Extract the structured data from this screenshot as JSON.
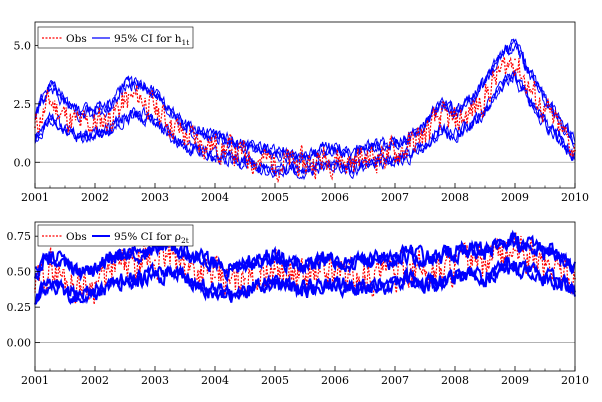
{
  "chart_data": [
    {
      "type": "line",
      "title": "",
      "xlabel": "",
      "ylabel": "",
      "xlim": [
        2001.0,
        2010.0
      ],
      "ylim": [
        -1.1,
        6.0
      ],
      "x_ticks": [
        "2001",
        "2002",
        "2003",
        "2004",
        "2005",
        "2006",
        "2007",
        "2008",
        "2009",
        "2010"
      ],
      "y_ticks": [
        "0.0",
        "2.5",
        "5.0"
      ],
      "y_tick_values": [
        0.0,
        2.5,
        5.0
      ],
      "reference_line": 0.0,
      "grid": false,
      "legend_position": "top-left",
      "x": [
        2001.0,
        2001.25,
        2001.5,
        2001.75,
        2002.0,
        2002.25,
        2002.5,
        2002.75,
        2003.0,
        2003.25,
        2003.5,
        2003.75,
        2004.0,
        2004.25,
        2004.5,
        2004.75,
        2005.0,
        2005.25,
        2005.5,
        2005.75,
        2006.0,
        2006.25,
        2006.5,
        2006.75,
        2007.0,
        2007.25,
        2007.5,
        2007.75,
        2008.0,
        2008.25,
        2008.5,
        2008.75,
        2009.0,
        2009.25,
        2009.5,
        2009.75,
        2010.0
      ],
      "series": [
        {
          "name": "Obs",
          "style": "dotted",
          "color": "#ff0000",
          "values": [
            1.5,
            2.6,
            2.0,
            1.6,
            1.7,
            1.9,
            2.6,
            2.8,
            2.3,
            1.7,
            1.1,
            0.9,
            0.7,
            0.5,
            0.3,
            0.1,
            0.0,
            0.0,
            -0.1,
            0.1,
            0.2,
            0.0,
            0.2,
            0.3,
            0.4,
            0.7,
            1.2,
            1.9,
            1.7,
            2.1,
            2.8,
            3.9,
            4.4,
            3.1,
            2.2,
            1.4,
            0.5
          ]
        },
        {
          "name": "95% CI for h",
          "name_subscript": "1t",
          "style": "band",
          "color": "#0000ff",
          "lower": [
            1.0,
            1.9,
            1.4,
            1.1,
            1.2,
            1.4,
            1.9,
            2.1,
            1.7,
            1.2,
            0.7,
            0.5,
            0.3,
            0.2,
            0.0,
            -0.2,
            -0.3,
            -0.3,
            -0.4,
            -0.2,
            -0.1,
            -0.3,
            -0.1,
            0.0,
            0.1,
            0.3,
            0.8,
            1.4,
            1.2,
            1.6,
            2.2,
            3.2,
            3.7,
            2.5,
            1.7,
            1.0,
            0.2
          ],
          "upper": [
            2.0,
            3.3,
            2.6,
            2.1,
            2.2,
            2.4,
            3.3,
            3.4,
            2.9,
            2.2,
            1.6,
            1.3,
            1.1,
            0.9,
            0.7,
            0.5,
            0.4,
            0.3,
            0.2,
            0.5,
            0.6,
            0.3,
            0.6,
            0.7,
            0.8,
            1.1,
            1.6,
            2.4,
            2.2,
            2.6,
            3.4,
            4.6,
            5.1,
            3.8,
            2.7,
            1.8,
            0.9
          ]
        }
      ]
    },
    {
      "type": "line",
      "title": "",
      "xlabel": "",
      "ylabel": "",
      "xlim": [
        2001.0,
        2010.0
      ],
      "ylim": [
        -0.2,
        0.85
      ],
      "x_ticks": [
        "2001",
        "2002",
        "2003",
        "2004",
        "2005",
        "2006",
        "2007",
        "2008",
        "2009",
        "2010"
      ],
      "y_ticks": [
        "0.00",
        "0.25",
        "0.50",
        "0.75"
      ],
      "y_tick_values": [
        0.0,
        0.25,
        0.5,
        0.75
      ],
      "reference_line": 0.0,
      "grid": false,
      "legend_position": "top-left",
      "x": [
        2001.0,
        2001.25,
        2001.5,
        2001.75,
        2002.0,
        2002.25,
        2002.5,
        2002.75,
        2003.0,
        2003.25,
        2003.5,
        2003.75,
        2004.0,
        2004.25,
        2004.5,
        2004.75,
        2005.0,
        2005.25,
        2005.5,
        2005.75,
        2006.0,
        2006.25,
        2006.5,
        2006.75,
        2007.0,
        2007.25,
        2007.5,
        2007.75,
        2008.0,
        2008.25,
        2008.5,
        2008.75,
        2009.0,
        2009.25,
        2009.5,
        2009.75,
        2010.0
      ],
      "series": [
        {
          "name": "Obs",
          "style": "dotted",
          "color": "#ff0000",
          "values": [
            0.38,
            0.55,
            0.45,
            0.4,
            0.42,
            0.5,
            0.55,
            0.52,
            0.58,
            0.6,
            0.55,
            0.5,
            0.46,
            0.42,
            0.45,
            0.5,
            0.52,
            0.48,
            0.45,
            0.5,
            0.5,
            0.48,
            0.46,
            0.5,
            0.48,
            0.55,
            0.5,
            0.52,
            0.55,
            0.58,
            0.55,
            0.62,
            0.65,
            0.6,
            0.55,
            0.52,
            0.45
          ]
        },
        {
          "name": "95% CI for ρ",
          "name_subscript": "2t",
          "style": "band",
          "color": "#0000ff",
          "lower": [
            0.3,
            0.42,
            0.36,
            0.33,
            0.35,
            0.4,
            0.45,
            0.44,
            0.47,
            0.5,
            0.46,
            0.41,
            0.37,
            0.34,
            0.37,
            0.41,
            0.43,
            0.4,
            0.37,
            0.41,
            0.41,
            0.39,
            0.38,
            0.41,
            0.4,
            0.45,
            0.41,
            0.43,
            0.45,
            0.48,
            0.46,
            0.52,
            0.54,
            0.5,
            0.46,
            0.43,
            0.35
          ],
          "upper": [
            0.48,
            0.62,
            0.55,
            0.5,
            0.52,
            0.58,
            0.64,
            0.62,
            0.66,
            0.68,
            0.64,
            0.59,
            0.55,
            0.52,
            0.55,
            0.59,
            0.61,
            0.57,
            0.55,
            0.59,
            0.59,
            0.57,
            0.56,
            0.59,
            0.58,
            0.64,
            0.59,
            0.61,
            0.64,
            0.67,
            0.64,
            0.7,
            0.72,
            0.68,
            0.64,
            0.61,
            0.53
          ]
        }
      ]
    }
  ]
}
